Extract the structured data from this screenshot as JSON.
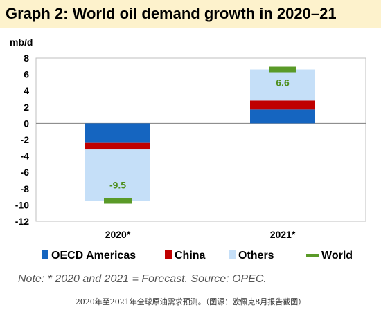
{
  "header": {
    "title": "Graph 2: World oil demand growth in 2020–21"
  },
  "chart_data": {
    "type": "bar",
    "stacked": true,
    "title": "Graph 2: World oil demand growth in 2020–21",
    "ylabel": "mb/d",
    "xlabel": "",
    "ylim": [
      -12,
      8
    ],
    "yticks": [
      8,
      6,
      4,
      2,
      0,
      -2,
      -4,
      -6,
      -8,
      -10,
      -12
    ],
    "categories": [
      "2020*",
      "2021*"
    ],
    "series": [
      {
        "name": "OECD Americas",
        "color": "#1565c0",
        "values": [
          -2.4,
          1.7
        ]
      },
      {
        "name": "China",
        "color": "#c00000",
        "values": [
          -0.8,
          1.1
        ]
      },
      {
        "name": "Others",
        "color": "#c5dff8",
        "values": [
          -6.3,
          3.8
        ]
      }
    ],
    "world": {
      "name": "World",
      "color": "#5a9a28",
      "values": [
        -9.5,
        6.6
      ],
      "labels": [
        "-9.5",
        "6.6"
      ]
    },
    "grid": false,
    "legend_position": "bottom"
  },
  "note": "Note: * 2020 and 2021 = Forecast. Source: OPEC.",
  "caption": "2020年至2021年全球原油需求预测。（图源：欧佩克8月报告截图）"
}
